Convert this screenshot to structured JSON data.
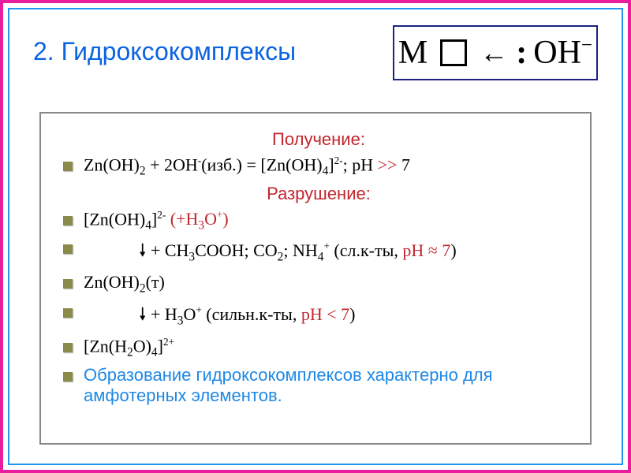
{
  "frame": {
    "outer_border_color": "#e91e9e",
    "inner_border_color": "#2196f3"
  },
  "title": {
    "text": "2. Гидроксокомплексы",
    "color": "#0d64e0",
    "fontsize": 32
  },
  "corner_box": {
    "border_color": "#1a237e",
    "left_symbol": "M",
    "right_symbol_html": "OH<sup>−</sup>",
    "text_color": "#000000"
  },
  "section_headers": {
    "obtain": "Получение:",
    "destroy": "Разрушение:",
    "color": "#c2262d",
    "fontsize": 22
  },
  "lines": [
    {
      "html": "Zn(OH)<sub>2</sub> + 2OH<sup>-</sup>(изб.) = [Zn(OH)<sub>4</sub>]<sup>2-</sup>; рН <span style='color:#c2262d'>&gt;&gt;</span> 7"
    },
    {
      "html": "[Zn(OH)<sub>4</sub>]<sup>2-</sup> <span style='color:#c2262d'>(+H<sub>3</sub>O<sup>+</sup>)</span>"
    },
    {
      "html": "🠗 + CH<sub>3</sub>COOH; CO<sub>2</sub>; NH<sub>4</sub><sup>+</sup> (сл.к-ты, <span style='color:#c2262d'>рН ≈ 7</span>)",
      "indent": true
    },
    {
      "html": "Zn(OH)<sub>2</sub>(т)"
    },
    {
      "html": "🠗 + H<sub>3</sub>O<sup>+</sup> (сильн.к-ты, <span style='color:#c2262d'>рН &lt; 7</span>)",
      "indent": true
    },
    {
      "html": "[Zn(H<sub>2</sub>O)<sub>4</sub>]<sup>2+</sup>"
    }
  ],
  "footer": {
    "text": "Образование гидроксокомплексов характерно для амфотерных элементов.",
    "color": "#1e88e5",
    "fontsize": 22
  },
  "body_text_color": "#000000",
  "bullet_color": "#8a8a4a"
}
